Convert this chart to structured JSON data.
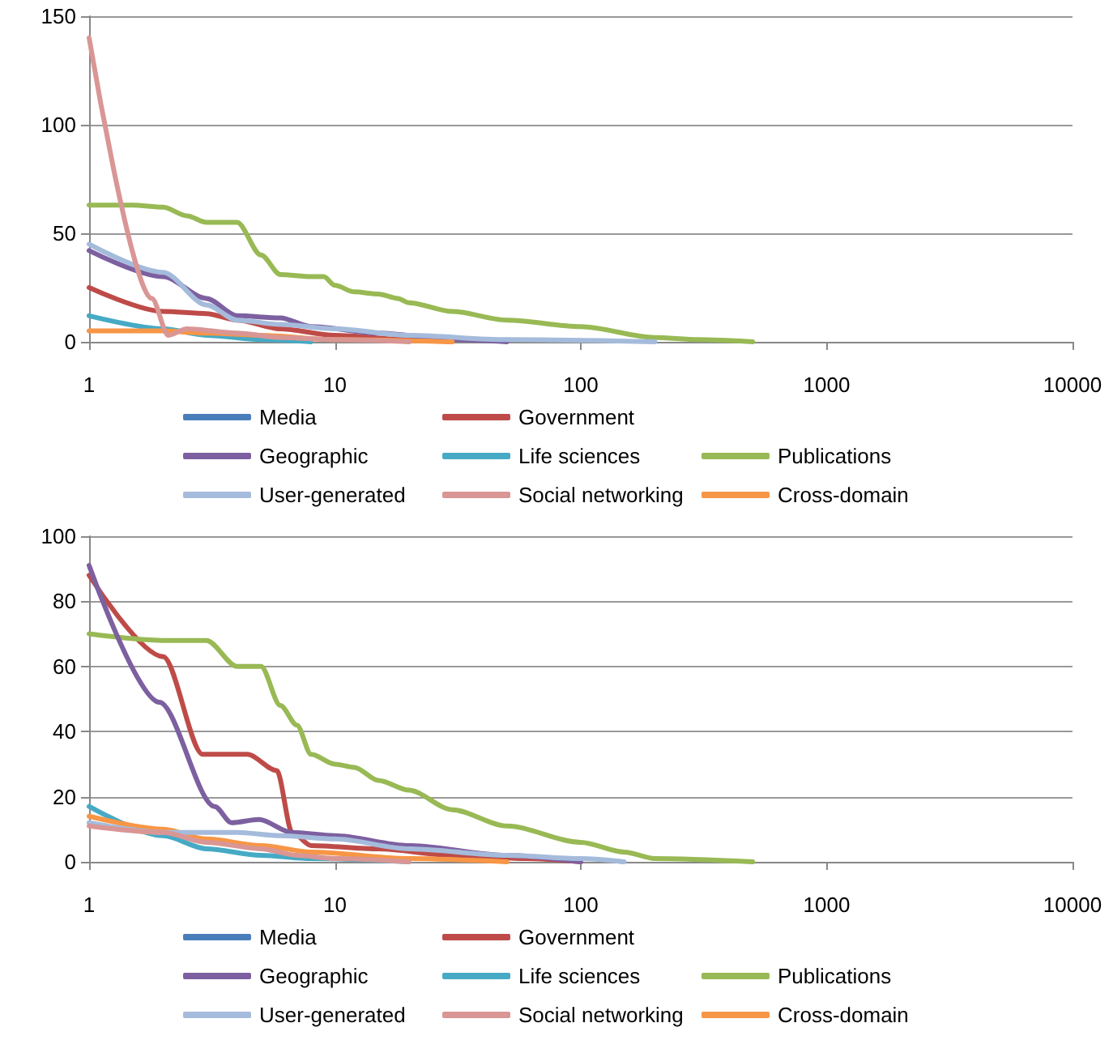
{
  "chart_data": [
    {
      "type": "line",
      "log": "x",
      "grid": "y",
      "legend": "bottom",
      "xlim": [
        1,
        10000
      ],
      "xticks": [
        1,
        10,
        100,
        1000,
        10000
      ],
      "ylim": [
        0,
        150
      ],
      "yticks": [
        0,
        50,
        100,
        150
      ],
      "series": [
        {
          "name": "Media",
          "color": "#4a7ebb"
        },
        {
          "name": "Government",
          "color": "#be4b48",
          "x": [
            1,
            2,
            3,
            4,
            6,
            10,
            20,
            30
          ],
          "values": [
            25,
            14,
            13,
            10,
            6,
            3,
            1,
            0
          ]
        },
        {
          "name": "Publications",
          "color": "#98b954",
          "x": [
            1,
            1.5,
            2,
            2.5,
            3,
            4,
            5,
            6,
            8,
            9,
            10,
            12,
            15,
            18,
            20,
            30,
            50,
            100,
            200,
            300,
            500
          ],
          "values": [
            63,
            63,
            62,
            58,
            55,
            55,
            40,
            31,
            30,
            30,
            26,
            23,
            22,
            20,
            18,
            14,
            10,
            7,
            2,
            1,
            0
          ]
        },
        {
          "name": "Geographic",
          "color": "#7d60a0",
          "x": [
            1,
            2,
            3,
            4,
            6,
            8,
            15,
            30,
            50
          ],
          "values": [
            42,
            30,
            20,
            12,
            11,
            7,
            4,
            1,
            0
          ]
        },
        {
          "name": "Life sciences",
          "color": "#46aac5",
          "x": [
            1,
            2,
            3,
            5,
            8
          ],
          "values": [
            12,
            6,
            3,
            1,
            0
          ]
        },
        {
          "name": "Cross-domain",
          "color": "#f79646",
          "x": [
            1,
            2,
            3,
            5,
            10,
            30
          ],
          "values": [
            5,
            5,
            4,
            3,
            1,
            0
          ]
        },
        {
          "name": "User-generated",
          "color": "#a5bbdc",
          "x": [
            1,
            2,
            3,
            4,
            6,
            10,
            20,
            50,
            200
          ],
          "values": [
            45,
            32,
            17,
            10,
            8,
            6,
            3,
            1,
            0
          ]
        },
        {
          "name": "Social networking",
          "color": "#d99694",
          "x": [
            1,
            1.8,
            2.1,
            2.5,
            4,
            6,
            10,
            20
          ],
          "values": [
            140,
            20,
            3,
            6,
            4,
            2,
            1,
            0
          ]
        }
      ]
    },
    {
      "type": "line",
      "log": "x",
      "grid": "y",
      "legend": "bottom",
      "xlim": [
        1,
        10000
      ],
      "xticks": [
        1,
        10,
        100,
        1000,
        10000
      ],
      "ylim": [
        0,
        100
      ],
      "yticks": [
        0,
        20,
        40,
        60,
        80,
        100
      ],
      "series": [
        {
          "name": "Media",
          "color": "#4a7ebb"
        },
        {
          "name": "Government",
          "color": "#be4b48",
          "x": [
            1,
            2,
            2.9,
            4.4,
            5.8,
            6.7,
            8,
            15,
            30,
            60,
            100
          ],
          "values": [
            88,
            63,
            33,
            33,
            28,
            9,
            5,
            4,
            2,
            1,
            0
          ]
        },
        {
          "name": "Publications",
          "color": "#98b954",
          "x": [
            1,
            2,
            3,
            4,
            5,
            6,
            7,
            8,
            10,
            12,
            15,
            20,
            30,
            50,
            100,
            150,
            200,
            500
          ],
          "values": [
            70,
            68,
            68,
            60,
            60,
            48,
            42,
            33,
            30,
            29,
            25,
            22,
            16,
            11,
            6,
            3,
            1,
            0
          ]
        },
        {
          "name": "Geographic",
          "color": "#7d60a0",
          "x": [
            1,
            1.93,
            3.24,
            3.8,
            4.9,
            6.7,
            10,
            20,
            50,
            100
          ],
          "values": [
            91,
            49,
            17,
            12,
            13,
            9,
            8,
            5,
            2,
            0
          ]
        },
        {
          "name": "Life sciences",
          "color": "#46aac5",
          "x": [
            1,
            2,
            3,
            5,
            8,
            20
          ],
          "values": [
            17,
            8,
            4,
            2,
            1,
            0
          ]
        },
        {
          "name": "Cross-domain",
          "color": "#f79646",
          "x": [
            1,
            2,
            3,
            5,
            8,
            20,
            50
          ],
          "values": [
            14,
            10,
            7,
            5,
            3,
            1,
            0
          ]
        },
        {
          "name": "User-generated",
          "color": "#a5bbdc",
          "x": [
            1,
            2,
            4,
            6,
            10,
            20,
            50,
            100,
            150
          ],
          "values": [
            12,
            9,
            9,
            8,
            7,
            4,
            2,
            1,
            0
          ]
        },
        {
          "name": "Social networking",
          "color": "#d99694",
          "x": [
            1,
            2,
            3,
            5,
            7,
            10,
            20
          ],
          "values": [
            11,
            9,
            6,
            4,
            2,
            1,
            0
          ]
        }
      ]
    }
  ]
}
